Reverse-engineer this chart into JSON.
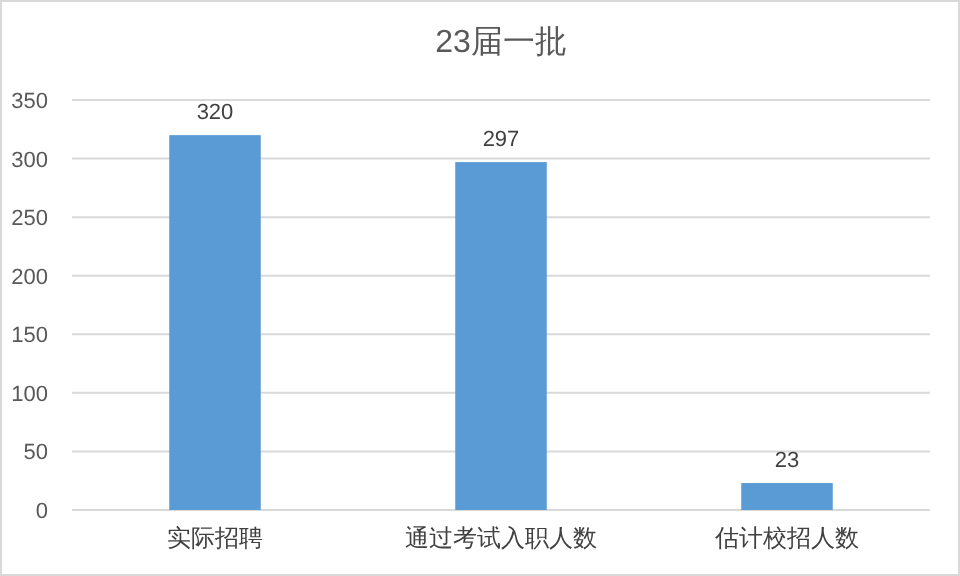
{
  "chart_data": {
    "type": "bar",
    "title": "23届一批",
    "categories": [
      "实际招聘",
      "通过考试入职人数",
      "估计校招人数"
    ],
    "values": [
      320,
      297,
      23
    ],
    "color": "#5b9bd5",
    "ylim": [
      0,
      350
    ],
    "yticks": [
      0,
      50,
      100,
      150,
      200,
      250,
      300,
      350
    ],
    "grid": "y",
    "data_labels": true
  }
}
